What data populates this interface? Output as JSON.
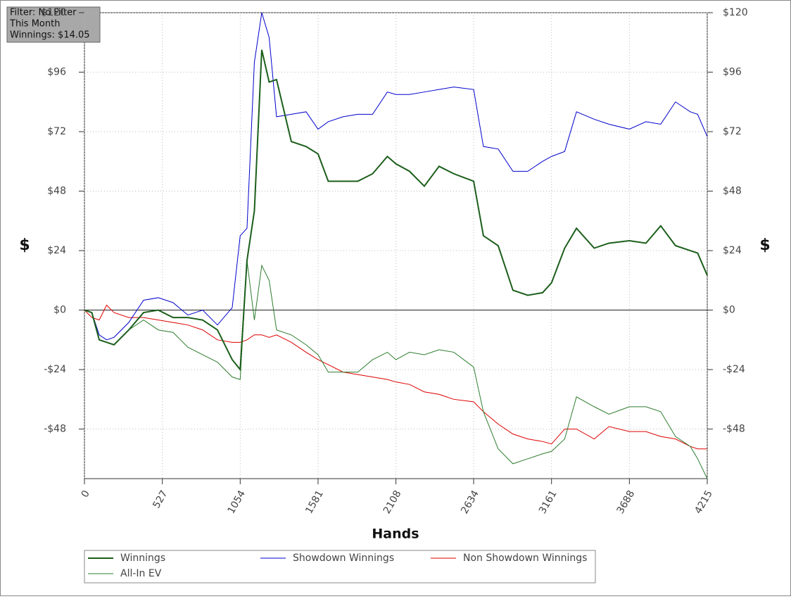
{
  "chart_data": {
    "type": "line",
    "annotations": [
      "Filter: No Filter",
      "This Month",
      "Winnings: $14.05"
    ],
    "xlabel": "Hands",
    "ylabel": "$",
    "x": [
      0,
      50,
      100,
      150,
      200,
      300,
      400,
      500,
      600,
      700,
      800,
      900,
      1000,
      1054,
      1100,
      1150,
      1200,
      1250,
      1300,
      1400,
      1500,
      1581,
      1650,
      1750,
      1850,
      1950,
      2050,
      2108,
      2200,
      2300,
      2400,
      2500,
      2634,
      2700,
      2800,
      2900,
      3000,
      3100,
      3161,
      3250,
      3330,
      3450,
      3550,
      3688,
      3800,
      3900,
      4000,
      4100,
      4150,
      4215
    ],
    "series": [
      {
        "name": "Winnings",
        "color": "#1b5e1b",
        "line_width": 2,
        "values": [
          0,
          -1,
          -12,
          -13,
          -14,
          -8,
          -1,
          0,
          -3,
          -3,
          -4,
          -8,
          -20,
          -24,
          20,
          40,
          105,
          92,
          93,
          68,
          66,
          63,
          52,
          52,
          52,
          55,
          62,
          59,
          56,
          50,
          58,
          55,
          52,
          30,
          26,
          8,
          6,
          7,
          11,
          25,
          33,
          25,
          27,
          28,
          27,
          34,
          26,
          24,
          23,
          14
        ]
      },
      {
        "name": "Showdown Winnings",
        "color": "#0000cc",
        "line_width": 1,
        "values": [
          0,
          -1,
          -10,
          -12,
          -11,
          -5,
          4,
          5,
          3,
          -2,
          0,
          -6,
          1,
          30,
          33,
          100,
          120,
          110,
          78,
          79,
          80,
          73,
          76,
          78,
          79,
          79,
          88,
          87,
          87,
          88,
          89,
          90,
          89,
          66,
          65,
          56,
          56,
          60,
          62,
          64,
          80,
          77,
          75,
          73,
          76,
          75,
          84,
          80,
          79,
          70
        ]
      },
      {
        "name": "Non Showdown Winnings",
        "color": "#dd0000",
        "line_width": 1,
        "values": [
          0,
          -3,
          -4,
          2,
          -1,
          -3,
          -3,
          -4,
          -5,
          -6,
          -8,
          -12,
          -13,
          -13,
          -12,
          -10,
          -10,
          -11,
          -10,
          -13,
          -17,
          -20,
          -22,
          -25,
          -26,
          -27,
          -28,
          -29,
          -30,
          -33,
          -34,
          -36,
          -37,
          -41,
          -46,
          -50,
          -52,
          -53,
          -54,
          -48,
          -48,
          -52,
          -47,
          -49,
          -49,
          -51,
          -52,
          -55,
          -56,
          -56
        ]
      },
      {
        "name": "All-In EV",
        "color": "#2e7d2e",
        "line_width": 1,
        "values": [
          0,
          -1,
          -12,
          -13,
          -14,
          -8,
          -4,
          -8,
          -9,
          -15,
          -18,
          -21,
          -27,
          -28,
          20,
          -4,
          18,
          12,
          -8,
          -10,
          -14,
          -18,
          -25,
          -25,
          -25,
          -20,
          -17,
          -20,
          -17,
          -18,
          -16,
          -17,
          -23,
          -41,
          -56,
          -62,
          -60,
          -58,
          -57,
          -52,
          -35,
          -39,
          -42,
          -39,
          -39,
          -41,
          -51,
          -55,
          -60,
          -68
        ]
      }
    ],
    "xlim": [
      0,
      4215
    ],
    "xticks": [
      0,
      527,
      1054,
      1581,
      2108,
      2634,
      3161,
      3688,
      4215
    ],
    "ylim": [
      -68,
      120
    ],
    "yticks": [
      {
        "value": -48,
        "label": "-$48"
      },
      {
        "value": -24,
        "label": "-$24"
      },
      {
        "value": 0,
        "label": "$0"
      },
      {
        "value": 24,
        "label": "$24"
      },
      {
        "value": 48,
        "label": "$48"
      },
      {
        "value": 72,
        "label": "$72"
      },
      {
        "value": 96,
        "label": "$96"
      },
      {
        "value": 120,
        "label": "$120"
      }
    ],
    "grid": true,
    "legend": "bottom"
  }
}
